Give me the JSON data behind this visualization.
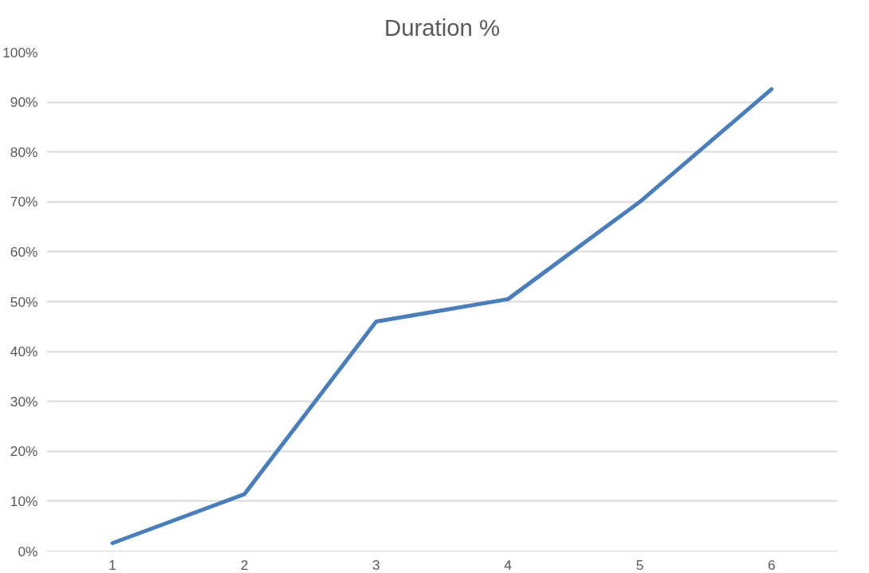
{
  "chart_data": {
    "type": "line",
    "title": "Duration %",
    "categories": [
      "1",
      "2",
      "3",
      "4",
      "5",
      "6"
    ],
    "series": [
      {
        "color": "#4a7ebb",
        "values": [
          1.6,
          11.4,
          46.0,
          50.5,
          70.0,
          92.6
        ]
      }
    ],
    "ylim": [
      0,
      100
    ],
    "yticks": [
      {
        "value": 0,
        "label": "0%"
      },
      {
        "value": 10,
        "label": "10%"
      },
      {
        "value": 20,
        "label": "20%"
      },
      {
        "value": 30,
        "label": "30%"
      },
      {
        "value": 40,
        "label": "40%"
      },
      {
        "value": 50,
        "label": "50%"
      },
      {
        "value": 60,
        "label": "60%"
      },
      {
        "value": 70,
        "label": "70%"
      },
      {
        "value": 80,
        "label": "80%"
      },
      {
        "value": 90,
        "label": "90%"
      },
      {
        "value": 100,
        "label": "100%"
      }
    ],
    "grid": "y",
    "marker": "none",
    "line_style": "solid"
  }
}
